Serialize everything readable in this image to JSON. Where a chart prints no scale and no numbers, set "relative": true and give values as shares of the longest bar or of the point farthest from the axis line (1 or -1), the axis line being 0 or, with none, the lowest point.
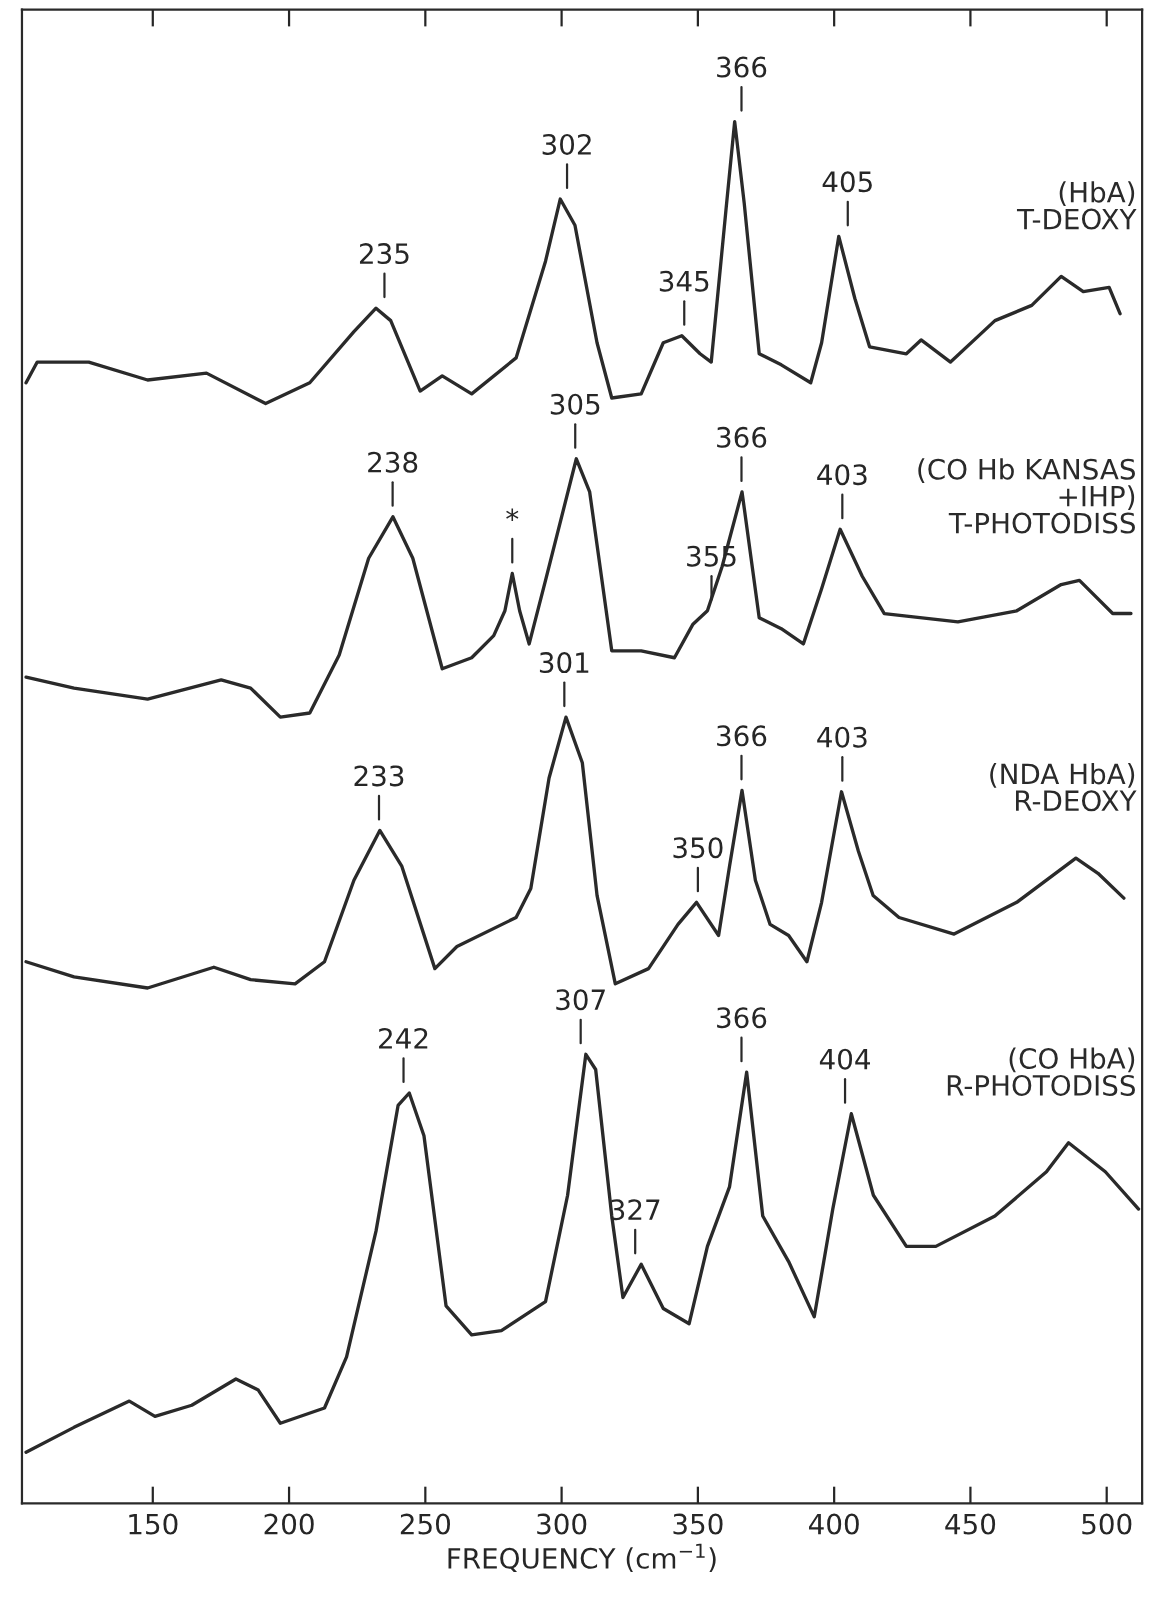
{
  "chart_data": {
    "type": "line",
    "relative": true,
    "xlabel": "FREQUENCY (cm$^{−1}$)",
    "xlim": [
      102,
      513
    ],
    "xticks": [
      150,
      200,
      250,
      300,
      350,
      400,
      450,
      500
    ],
    "grid": false,
    "legend": false,
    "marker": "none",
    "line_style": "solid",
    "series": [
      {
        "name": "(HbA)\nT-DEOXY",
        "color": "#2a2a2a",
        "x": [
          103.5,
          107.6,
          126.5,
          148.1,
          169.7,
          191.4,
          207.6,
          223.8,
          231.9,
          237.3,
          248.1,
          256.2,
          267.0,
          283.3,
          294.1,
          299.5,
          304.9,
          313.0,
          318.4,
          329.2,
          337.3,
          344.1,
          350.8,
          354.9,
          360.3,
          363.5,
          367.0,
          372.5,
          380.6,
          391.4,
          395.4,
          401.7,
          407.6,
          413.0,
          426.5,
          431.9,
          442.7,
          459.0,
          472.5,
          483.3,
          491.4,
          500.9,
          504.9
        ],
        "values": [
          0.811,
          0.826,
          0.826,
          0.813,
          0.818,
          0.796,
          0.811,
          0.848,
          0.865,
          0.856,
          0.805,
          0.816,
          0.803,
          0.829,
          0.899,
          0.944,
          0.925,
          0.84,
          0.8,
          0.803,
          0.84,
          0.845,
          0.832,
          0.826,
          0.936,
          1.0,
          0.941,
          0.832,
          0.824,
          0.811,
          0.84,
          0.917,
          0.872,
          0.837,
          0.832,
          0.842,
          0.826,
          0.856,
          0.867,
          0.888,
          0.877,
          0.88,
          0.861
        ]
      },
      {
        "name": "(CO Hb KANSAS\n+IHP)\nT-PHOTODISS",
        "color": "#2a2a2a",
        "x": [
          103.5,
          121.1,
          148.1,
          175.1,
          185.9,
          196.8,
          207.6,
          218.4,
          229.2,
          238.1,
          245.4,
          256.2,
          267.0,
          275.1,
          279.2,
          281.9,
          284.6,
          288.1,
          294.1,
          305.4,
          310.3,
          318.4,
          329.2,
          341.4,
          348.1,
          353.5,
          358.9,
          366.2,
          372.5,
          380.6,
          388.7,
          395.4,
          402.2,
          410.3,
          418.4,
          445.4,
          467.0,
          483.3,
          490.0,
          502.2,
          508.9
        ],
        "values": [
          0.598,
          0.59,
          0.582,
          0.596,
          0.59,
          0.569,
          0.572,
          0.614,
          0.684,
          0.714,
          0.684,
          0.604,
          0.612,
          0.628,
          0.646,
          0.673,
          0.646,
          0.622,
          0.668,
          0.756,
          0.732,
          0.617,
          0.617,
          0.612,
          0.636,
          0.646,
          0.678,
          0.732,
          0.641,
          0.633,
          0.622,
          0.662,
          0.705,
          0.671,
          0.644,
          0.638,
          0.646,
          0.665,
          0.668,
          0.644,
          0.644
        ]
      },
      {
        "name": "(NDA HbA)\nR-DEOXY",
        "color": "#2a2a2a",
        "x": [
          103.5,
          121.1,
          148.1,
          172.4,
          185.9,
          202.2,
          213.0,
          223.8,
          233.3,
          241.4,
          253.5,
          261.6,
          283.3,
          288.7,
          295.4,
          301.6,
          307.6,
          313.0,
          319.7,
          331.9,
          342.7,
          349.5,
          357.6,
          361.6,
          366.2,
          371.1,
          376.5,
          383.3,
          390.0,
          395.4,
          402.7,
          408.9,
          414.3,
          423.8,
          444.0,
          467.0,
          488.7,
          496.8,
          506.3
        ],
        "values": [
          0.392,
          0.381,
          0.373,
          0.388,
          0.379,
          0.376,
          0.392,
          0.451,
          0.487,
          0.461,
          0.387,
          0.403,
          0.424,
          0.445,
          0.525,
          0.569,
          0.536,
          0.44,
          0.376,
          0.387,
          0.419,
          0.435,
          0.411,
          0.461,
          0.516,
          0.451,
          0.419,
          0.411,
          0.392,
          0.435,
          0.515,
          0.472,
          0.44,
          0.424,
          0.412,
          0.435,
          0.467,
          0.456,
          0.438
        ]
      },
      {
        "name": "(CO HbA)\nR-PHOTODISS",
        "color": "#2a2a2a",
        "x": [
          103.5,
          121.1,
          141.4,
          150.8,
          164.3,
          180.5,
          188.7,
          196.8,
          213.0,
          221.1,
          231.9,
          240.0,
          244.1,
          249.5,
          257.6,
          267.0,
          277.9,
          294.1,
          302.2,
          308.9,
          312.5,
          318.4,
          322.5,
          329.2,
          337.3,
          346.8,
          353.5,
          361.6,
          367.9,
          373.8,
          383.3,
          392.7,
          399.5,
          406.3,
          414.4,
          426.5,
          437.3,
          459.0,
          477.9,
          486.0,
          499.5,
          511.7
        ],
        "values": [
          0.037,
          0.055,
          0.074,
          0.063,
          0.071,
          0.09,
          0.082,
          0.058,
          0.069,
          0.106,
          0.197,
          0.288,
          0.297,
          0.266,
          0.143,
          0.122,
          0.125,
          0.146,
          0.223,
          0.325,
          0.314,
          0.208,
          0.149,
          0.173,
          0.141,
          0.13,
          0.186,
          0.229,
          0.312,
          0.208,
          0.175,
          0.135,
          0.213,
          0.282,
          0.223,
          0.186,
          0.186,
          0.208,
          0.24,
          0.261,
          0.24,
          0.213
        ]
      }
    ],
    "annotations": [
      {
        "text": "235",
        "x": 235,
        "y": 0.865
      },
      {
        "text": "302",
        "x": 302,
        "y": 0.944
      },
      {
        "text": "345",
        "x": 345,
        "y": 0.845
      },
      {
        "text": "366",
        "x": 366,
        "y": 1.0
      },
      {
        "text": "405",
        "x": 405,
        "y": 0.917
      },
      {
        "text": "238",
        "x": 238,
        "y": 0.714
      },
      {
        "text": "*",
        "x": 281.9,
        "y": 0.673
      },
      {
        "text": "305",
        "x": 305,
        "y": 0.756
      },
      {
        "text": "355",
        "x": 355,
        "y": 0.646
      },
      {
        "text": "366",
        "x": 366,
        "y": 0.732
      },
      {
        "text": "403",
        "x": 403,
        "y": 0.705
      },
      {
        "text": "233",
        "x": 233,
        "y": 0.487
      },
      {
        "text": "301",
        "x": 301,
        "y": 0.569
      },
      {
        "text": "350",
        "x": 350,
        "y": 0.435
      },
      {
        "text": "366",
        "x": 366,
        "y": 0.516
      },
      {
        "text": "403",
        "x": 403,
        "y": 0.515
      },
      {
        "text": "242",
        "x": 242,
        "y": 0.297
      },
      {
        "text": "307",
        "x": 307,
        "y": 0.325
      },
      {
        "text": "327",
        "x": 327,
        "y": 0.173
      },
      {
        "text": "366",
        "x": 366,
        "y": 0.312
      },
      {
        "text": "404",
        "x": 404,
        "y": 0.282
      }
    ]
  }
}
